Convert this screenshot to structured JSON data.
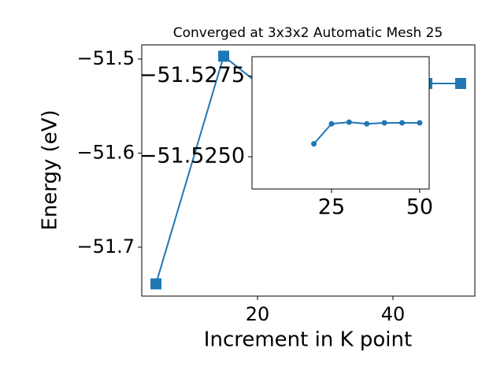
{
  "chart_data": [
    {
      "type": "line",
      "title": "Converged at 3x3x2 Automatic Mesh 25",
      "x_label": "Increment in K point",
      "y_label": "Energy (eV)",
      "x": [
        5,
        15,
        20,
        25,
        30,
        35,
        40,
        45,
        50
      ],
      "series": [
        {
          "color": "#1f77b4",
          "values": [
            -51.739,
            -51.497,
            -51.5254,
            -51.526,
            -51.5261,
            -51.526,
            -51.526,
            -51.526,
            -51.526
          ]
        }
      ],
      "xlim": [
        2.9,
        52.1
      ],
      "xticks": [
        20,
        40
      ],
      "ylim": [
        -51.752,
        -51.485
      ],
      "yticks": [
        {
          "value": -51.7,
          "label": "−51.7"
        },
        {
          "value": -51.6,
          "label": "−51.6"
        },
        {
          "value": -51.5,
          "label": "−51.5"
        }
      ]
    },
    {
      "type": "line",
      "x": [
        20,
        25,
        30,
        35,
        40,
        45,
        50
      ],
      "series": [
        {
          "color": "#1f77b4",
          "values": [
            -51.5254,
            -51.52602,
            -51.52607,
            -51.52602,
            -51.52605,
            -51.52605,
            -51.52605
          ]
        }
      ],
      "xlim": [
        2.45,
        52.7
      ],
      "xticks": [
        25,
        50
      ],
      "ylim": [
        -51.524,
        -51.5281
      ],
      "yticks": [
        {
          "value": -51.525,
          "label": "−51.5250"
        },
        {
          "value": -51.5275,
          "label": "−51.5275"
        }
      ]
    }
  ]
}
